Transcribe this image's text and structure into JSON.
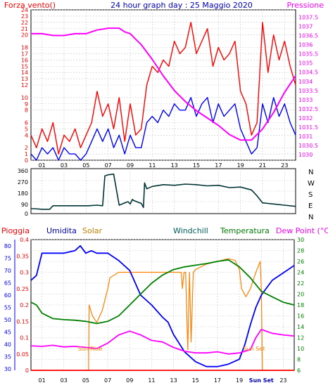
{
  "header": {
    "left_label": "Forza vento()",
    "title": "24 hour graph day : 25 Maggio 2020",
    "right_label": "Pressione"
  },
  "wind_dir": {
    "y_ticks": [
      "360",
      "270",
      "180",
      "90",
      "0"
    ],
    "compass": [
      "N",
      "W",
      "S",
      "E",
      "N"
    ]
  },
  "legend": {
    "pioggia": "Pioggia",
    "umidita": "Umidita",
    "solar": "Solar",
    "windchill": "Windchill",
    "temperatura": "Temperatura",
    "dew_point": "Dew Point (°C)"
  },
  "markers": {
    "sun_rise": "Sun Rise",
    "sun_set": "Sun Set"
  },
  "x_ticks": [
    "01",
    "03",
    "05",
    "07",
    "09",
    "11",
    "13",
    "15",
    "17",
    "19",
    "21",
    "23"
  ],
  "x_ticks_bottom": [
    "01",
    "03",
    "05",
    "07",
    "09",
    "11",
    "13",
    "15",
    "17",
    "19",
    "Sun Set",
    "23"
  ],
  "colors": {
    "wind_gust": "#ff0000",
    "wind_avg": "#0000ff",
    "pressure": "#ff00ff",
    "wind_dir": "#003333",
    "humidity": "#0000ff",
    "solar": "#ff8000",
    "temperature": "#008000",
    "dewpoint": "#ff00ff",
    "rain": "#ff0000",
    "grid": "#c8c8c8"
  },
  "chart_data": [
    {
      "type": "line",
      "name": "wind-pressure",
      "x_unit": "hour",
      "xlim": [
        0,
        24
      ],
      "y_left": {
        "label": "Forza vento()",
        "ticks": [
          "0",
          "1",
          "2",
          "4",
          "5",
          "6",
          "8",
          "9",
          "10",
          "12",
          "13",
          "14",
          "15",
          "16",
          "17",
          "18",
          "20",
          "21",
          "22",
          "23",
          "24"
        ],
        "ylim": [
          0,
          24
        ]
      },
      "y_right": {
        "label": "Pressione",
        "ticks": [
          "1030",
          "1030.5",
          "1031",
          "1031.5",
          "1032",
          "1032.5",
          "1033",
          "1033.5",
          "1034",
          "1034.5",
          "1035",
          "1035.5",
          "1036",
          "1036.5",
          "1037",
          "1037.5"
        ],
        "ylim": [
          1029.7,
          1037.9
        ]
      },
      "series": [
        {
          "key": "gust",
          "axis": "left",
          "color_key": "wind_gust",
          "x": [
            0,
            0.5,
            1,
            1.5,
            2,
            2.5,
            3,
            3.5,
            4,
            4.5,
            5,
            5.5,
            6,
            6.5,
            7,
            7.5,
            8,
            8.5,
            9,
            9.5,
            10,
            10.5,
            11,
            11.5,
            12,
            12.5,
            13,
            13.5,
            14,
            14.5,
            15,
            15.5,
            16,
            16.5,
            17,
            17.5,
            18,
            18.5,
            19,
            19.5,
            20,
            20.5,
            21,
            21.5,
            22,
            22.5,
            23,
            23.5,
            24
          ],
          "values": [
            4,
            2,
            5,
            3,
            6,
            1,
            4,
            3,
            5,
            2,
            4,
            6,
            11,
            7,
            9,
            5,
            10,
            3,
            9,
            4,
            5,
            12,
            15,
            14,
            16,
            15,
            19,
            17,
            18,
            22,
            17,
            19,
            21,
            15,
            18,
            16,
            17,
            19,
            11,
            9,
            4,
            6,
            22,
            14,
            20,
            16,
            19,
            15,
            12
          ]
        },
        {
          "key": "avg",
          "axis": "left",
          "color_key": "wind_avg",
          "x": [
            0,
            0.5,
            1,
            1.5,
            2,
            2.5,
            3,
            3.5,
            4,
            4.5,
            5,
            5.5,
            6,
            6.5,
            7,
            7.5,
            8,
            8.5,
            9,
            9.5,
            10,
            10.5,
            11,
            11.5,
            12,
            12.5,
            13,
            13.5,
            14,
            14.5,
            15,
            15.5,
            16,
            16.5,
            17,
            17.5,
            18,
            18.5,
            19,
            19.5,
            20,
            20.5,
            21,
            21.5,
            22,
            22.5,
            23,
            23.5,
            24
          ],
          "values": [
            1,
            0,
            2,
            1,
            2,
            0,
            2,
            1,
            1,
            0,
            1,
            3,
            5,
            3,
            5,
            2,
            4,
            1,
            4,
            2,
            2,
            6,
            7,
            6,
            8,
            7,
            9,
            8,
            8,
            10,
            7,
            9,
            10,
            6,
            9,
            7,
            8,
            9,
            5,
            3,
            1,
            2,
            9,
            6,
            10,
            7,
            9,
            6,
            4
          ]
        },
        {
          "key": "pressure",
          "axis": "right",
          "color_key": "pressure",
          "x": [
            0,
            1,
            2,
            3,
            4,
            5,
            6,
            7,
            8,
            8.5,
            9,
            9.5,
            10,
            11,
            12,
            13,
            14,
            15,
            16,
            17,
            18,
            19,
            20,
            21,
            22,
            23,
            24
          ],
          "values": [
            1036.6,
            1036.6,
            1036.5,
            1036.5,
            1036.6,
            1036.6,
            1036.8,
            1036.9,
            1036.9,
            1036.7,
            1036.6,
            1036.3,
            1036,
            1035.2,
            1034.3,
            1033.5,
            1032.9,
            1032.4,
            1032,
            1031.6,
            1031.1,
            1030.8,
            1030.8,
            1031.4,
            1032.3,
            1033.4,
            1034.3
          ]
        }
      ]
    },
    {
      "type": "line",
      "name": "wind-direction",
      "x_unit": "hour",
      "xlim": [
        0,
        24
      ],
      "ylim": [
        0,
        360
      ],
      "series": [
        {
          "key": "dir",
          "color_key": "wind_dir",
          "x": [
            0,
            0.3,
            1,
            1.7,
            2,
            3,
            4,
            5,
            5.2,
            6,
            6.5,
            6.7,
            7,
            7.5,
            8,
            8.5,
            8.8,
            9,
            9.2,
            9.3,
            10,
            10.2,
            10.3,
            10.5,
            11,
            12,
            13,
            14,
            15,
            16,
            17,
            18,
            19,
            20,
            20.5,
            21,
            22,
            23,
            24
          ],
          "values": [
            30,
            30,
            25,
            25,
            55,
            55,
            55,
            55,
            55,
            60,
            55,
            310,
            320,
            325,
            60,
            80,
            90,
            70,
            110,
            100,
            75,
            40,
            250,
            200,
            220,
            235,
            230,
            240,
            235,
            225,
            230,
            210,
            215,
            190,
            140,
            80,
            70,
            60,
            50
          ]
        }
      ]
    },
    {
      "type": "line",
      "name": "temperature-humidity",
      "x_unit": "hour",
      "xlim": [
        0,
        24
      ],
      "axes": {
        "rain": {
          "label": "Pioggia",
          "ticks": [
            "0",
            "0.05",
            "0.1",
            "0.15",
            "0.2",
            "0.25",
            "0.3",
            "0.35",
            "0.4"
          ],
          "ylim": [
            0,
            0.4
          ]
        },
        "humidity": {
          "label": "Umidita",
          "ticks": [
            "30",
            "35",
            "40",
            "45",
            "50",
            "55",
            "60",
            "65",
            "70",
            "75",
            "80"
          ],
          "ylim": [
            29.5,
            82.5
          ]
        },
        "temp": {
          "label": "Dew Point (°C)",
          "ticks": [
            "6",
            "8",
            "10",
            "12",
            "14",
            "16",
            "18",
            "20",
            "22",
            "24",
            "26",
            "28",
            "30"
          ],
          "ylim": [
            6,
            30
          ]
        }
      },
      "series": [
        {
          "key": "humidity",
          "axis": "humidity",
          "color_key": "humidity",
          "x": [
            0,
            0.5,
            1,
            2,
            3,
            4,
            4.5,
            5,
            5.5,
            6,
            7,
            8,
            9,
            9.5,
            10,
            11,
            12,
            12.5,
            13,
            14,
            15,
            16,
            17,
            18,
            19,
            19.5,
            20,
            20.5,
            21,
            21.5,
            22,
            23,
            24
          ],
          "values": [
            66,
            68,
            77,
            77,
            77,
            78,
            80,
            77,
            78,
            77,
            77,
            74,
            70,
            65,
            60,
            56,
            51,
            49,
            44,
            37,
            33,
            31,
            31,
            32,
            34,
            40,
            48,
            55,
            60,
            63,
            66,
            69,
            72
          ]
        },
        {
          "key": "temperature",
          "axis": "temp",
          "color_key": "temperature",
          "x": [
            0,
            0.5,
            1,
            2,
            3,
            4,
            5,
            6,
            7,
            8,
            9,
            10,
            11,
            12,
            13,
            14,
            15,
            16,
            17,
            18,
            19,
            20,
            21,
            22,
            23,
            24
          ],
          "values": [
            18.5,
            18,
            16.5,
            15.5,
            15.3,
            15.2,
            15,
            14.6,
            15,
            16,
            18,
            20,
            22,
            23.5,
            24.5,
            25,
            25.3,
            25.6,
            26,
            26.3,
            25,
            23,
            20.5,
            19.5,
            18.5,
            18
          ]
        },
        {
          "key": "dewpoint",
          "axis": "temp",
          "color_key": "dewpoint",
          "x": [
            0,
            1,
            2,
            3,
            4,
            5,
            6,
            7,
            8,
            9,
            10,
            11,
            12,
            13,
            14,
            15,
            16,
            17,
            18,
            19,
            20,
            20.5,
            21,
            22,
            23,
            24
          ],
          "values": [
            10.5,
            10.4,
            10.6,
            10.3,
            10.4,
            10.2,
            10,
            11,
            12.5,
            13.2,
            12.5,
            11.5,
            11.2,
            10.2,
            9.5,
            9.2,
            9.2,
            9.4,
            9,
            9.2,
            9.8,
            12,
            13.5,
            12.8,
            12.5,
            12.3
          ]
        },
        {
          "key": "solar",
          "axis": "temp",
          "color_key": "solar",
          "x": [
            0,
            5.1,
            5.25,
            5.3,
            5.6,
            6,
            6.5,
            7,
            7.2,
            8,
            9,
            10,
            11,
            12,
            13,
            13.7,
            13.8,
            13.95,
            14.1,
            14.3,
            14.45,
            14.6,
            14.8,
            15,
            16,
            17,
            18,
            18.6,
            19,
            19.2,
            19.6,
            20,
            20.5,
            20.9,
            21,
            21.1,
            24
          ],
          "values": [
            6,
            6,
            6,
            18,
            16,
            14.8,
            17,
            21,
            23,
            24,
            24,
            24,
            24,
            24,
            24,
            24,
            21,
            24,
            24,
            9.8,
            24,
            11.2,
            24,
            24.5,
            25.5,
            26,
            26.5,
            26.2,
            24.5,
            21,
            19.5,
            21,
            24,
            26,
            21,
            6,
            6
          ]
        },
        {
          "key": "rain",
          "axis": "rain",
          "color_key": "rain",
          "x": [
            0,
            24
          ],
          "values": [
            0,
            0
          ]
        }
      ]
    }
  ]
}
